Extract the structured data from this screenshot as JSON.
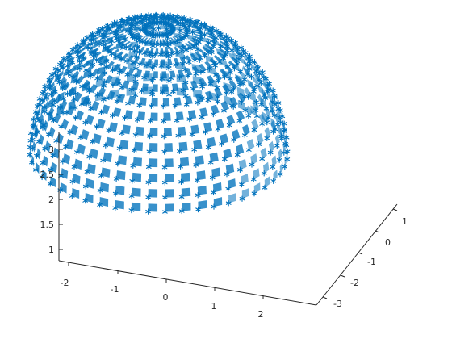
{
  "chart_data": {
    "type": "scatter3d-surface",
    "title": "",
    "xlabel": "",
    "ylabel": "",
    "zlabel": "",
    "grid": false,
    "marker": "*",
    "colors": {
      "marker": "#0072BD",
      "surface": "#0072BD",
      "axes": "#262626",
      "background": "#ffffff"
    },
    "xlim": [
      -2.3,
      2.7
    ],
    "ylim": [
      -3.3,
      1.3
    ],
    "zlim": [
      0.75,
      3.3
    ],
    "x_ticks": [
      "-2",
      "-1",
      "0",
      "1",
      "2"
    ],
    "y_ticks": [
      "-3",
      "-2",
      "-1",
      "0",
      "1"
    ],
    "z_ticks": [
      "1",
      "1.5",
      "2",
      "2.5",
      "3"
    ],
    "sphere_center": [
      0.2,
      -1.0,
      0.8
    ],
    "sphere_radius": 2.5,
    "view_azimuth": -37.5,
    "view_elevation": 30
  }
}
